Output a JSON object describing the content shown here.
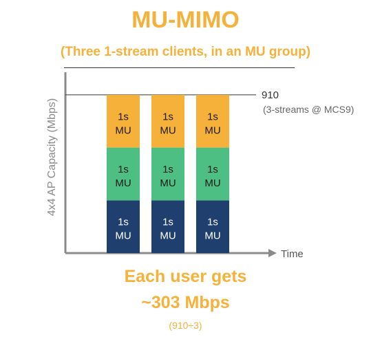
{
  "header": {
    "title": "MU-MIMO",
    "subtitle": "(Three 1-stream clients, in an MU group)"
  },
  "chart_data": {
    "type": "bar",
    "stacked": true,
    "categories": [
      "",
      "",
      ""
    ],
    "ylabel": "4x4 AP Capacity (Mbps)",
    "xlabel": "Time",
    "ylim": [
      0,
      1040
    ],
    "series": [
      {
        "values": [
          303.3,
          303.3,
          303.3
        ],
        "label": "1s\nMU",
        "color": "#1f3f6e",
        "text_color": "#ffffff"
      },
      {
        "values": [
          303.3,
          303.3,
          303.3
        ],
        "label": "1s\nMU",
        "color": "#4dbf82",
        "text_color": "#1a1a1a"
      },
      {
        "values": [
          303.3,
          303.3,
          303.3
        ],
        "label": "1s\nMU",
        "color": "#f5b13a",
        "text_color": "#1a1a1a"
      }
    ],
    "reference_line": {
      "value": 910,
      "label": "910",
      "sublabel": "(3-streams @ MCS9)"
    },
    "colors": {
      "axis": "#8a8a8a",
      "reference": "#333333"
    }
  },
  "footer": {
    "line1": "Each user gets",
    "line2": "~303 Mbps",
    "line3": "(910÷3)"
  }
}
